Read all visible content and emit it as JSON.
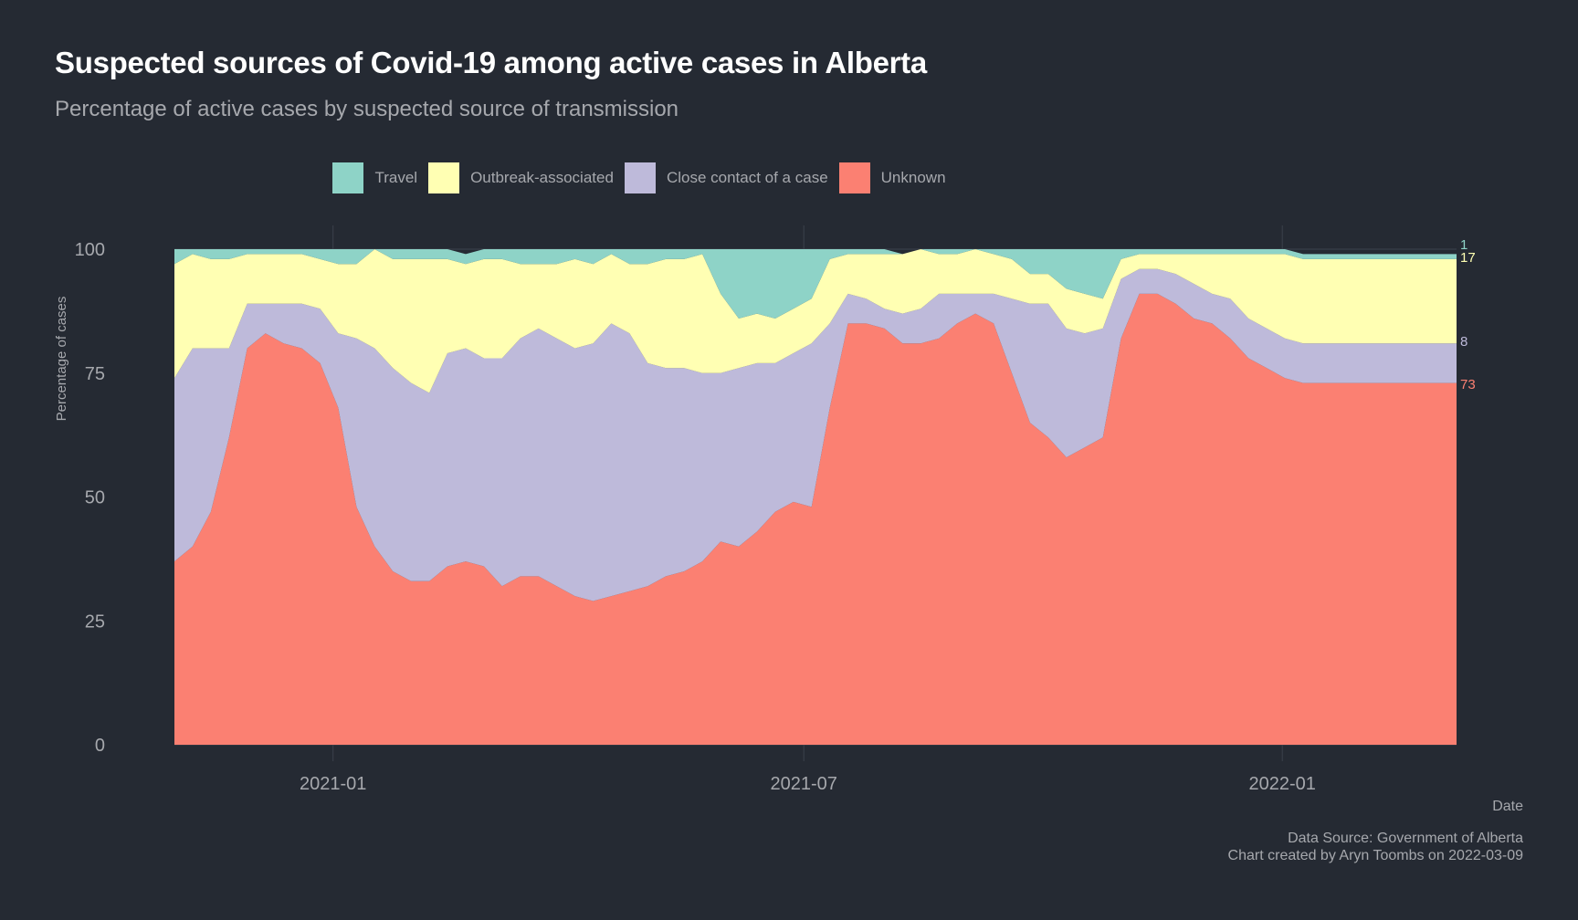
{
  "title": "Suspected sources of Covid-19 among active cases in Alberta",
  "subtitle": "Percentage of active cases by suspected source of transmission",
  "caption": {
    "source": "Data Source: Government of Alberta",
    "credit": "Chart created by Aryn Toombs on 2022-03-09"
  },
  "colors": {
    "background": "#252a33",
    "travel": "#8ed3c7",
    "outbreak": "#ffffb3",
    "close_contact": "#bebada",
    "unknown": "#fb8072",
    "text": "#a6a8ad",
    "grid": "#3b414c"
  },
  "legend": [
    {
      "name": "Travel",
      "color": "#8ed3c7"
    },
    {
      "name": "Outbreak-associated",
      "color": "#ffffb3"
    },
    {
      "name": "Close contact of a case",
      "color": "#bebada"
    },
    {
      "name": "Unknown",
      "color": "#fb8072"
    }
  ],
  "chart_data": {
    "type": "area",
    "stacked": true,
    "xlabel": "Date",
    "ylabel": "Percentage of cases",
    "ylim": [
      0,
      100
    ],
    "xlim": [
      "2020-11-01",
      "2022-03-09"
    ],
    "yticks": [
      0,
      25,
      50,
      75,
      100
    ],
    "xticks": [
      "2021-01",
      "2021-07",
      "2022-01"
    ],
    "legend_position": "top",
    "grid": true,
    "x": [
      "2020-11-01",
      "2020-11-08",
      "2020-11-15",
      "2020-11-22",
      "2020-11-29",
      "2020-12-06",
      "2020-12-13",
      "2020-12-20",
      "2020-12-27",
      "2021-01-03",
      "2021-01-10",
      "2021-01-17",
      "2021-01-24",
      "2021-01-31",
      "2021-02-07",
      "2021-02-14",
      "2021-02-21",
      "2021-02-28",
      "2021-03-07",
      "2021-03-14",
      "2021-03-21",
      "2021-03-28",
      "2021-04-04",
      "2021-04-11",
      "2021-04-18",
      "2021-04-25",
      "2021-05-02",
      "2021-05-09",
      "2021-05-16",
      "2021-05-23",
      "2021-05-30",
      "2021-06-06",
      "2021-06-13",
      "2021-06-20",
      "2021-06-27",
      "2021-07-04",
      "2021-07-11",
      "2021-07-18",
      "2021-07-25",
      "2021-08-01",
      "2021-08-08",
      "2021-08-15",
      "2021-08-22",
      "2021-08-29",
      "2021-09-05",
      "2021-09-12",
      "2021-09-19",
      "2021-09-26",
      "2021-10-03",
      "2021-10-10",
      "2021-10-17",
      "2021-10-24",
      "2021-10-31",
      "2021-11-07",
      "2021-11-14",
      "2021-11-21",
      "2021-11-28",
      "2021-12-05",
      "2021-12-12",
      "2021-12-19",
      "2021-12-26",
      "2022-01-02",
      "2022-01-09",
      "2022-01-16",
      "2022-01-23",
      "2022-01-30",
      "2022-02-06",
      "2022-02-13",
      "2022-02-20",
      "2022-02-27",
      "2022-03-06",
      "2022-03-09"
    ],
    "series": [
      {
        "name": "Unknown",
        "values": [
          37,
          40,
          47,
          62,
          80,
          83,
          81,
          80,
          77,
          68,
          48,
          40,
          35,
          33,
          33,
          36,
          37,
          36,
          32,
          34,
          34,
          32,
          30,
          29,
          30,
          31,
          32,
          34,
          35,
          37,
          41,
          40,
          43,
          47,
          49,
          48,
          68,
          85,
          85,
          84,
          81,
          81,
          82,
          85,
          87,
          85,
          75,
          65,
          62,
          58,
          60,
          62,
          82,
          91,
          91,
          89,
          86,
          85,
          82,
          78,
          76,
          74,
          73,
          73,
          73,
          73,
          73,
          73,
          73,
          73,
          73,
          73
        ]
      },
      {
        "name": "Close contact of a case",
        "values": [
          37,
          40,
          33,
          18,
          9,
          6,
          8,
          9,
          11,
          15,
          34,
          40,
          41,
          40,
          38,
          43,
          43,
          42,
          46,
          48,
          50,
          50,
          50,
          52,
          55,
          52,
          45,
          42,
          41,
          38,
          34,
          36,
          34,
          30,
          30,
          33,
          17,
          6,
          5,
          4,
          6,
          7,
          9,
          6,
          4,
          6,
          15,
          24,
          27,
          26,
          23,
          22,
          12,
          5,
          5,
          6,
          7,
          6,
          8,
          8,
          8,
          8,
          8,
          8,
          8,
          8,
          8,
          8,
          8,
          8,
          8,
          8
        ]
      },
      {
        "name": "Outbreak-associated",
        "values": [
          23,
          19,
          18,
          18,
          10,
          10,
          10,
          10,
          10,
          14,
          15,
          20,
          22,
          25,
          27,
          19,
          17,
          20,
          20,
          15,
          13,
          15,
          18,
          16,
          14,
          14,
          20,
          22,
          22,
          24,
          16,
          10,
          10,
          9,
          9,
          9,
          13,
          8,
          9,
          11,
          12,
          12,
          8,
          8,
          9,
          8,
          8,
          6,
          6,
          8,
          8,
          6,
          4,
          3,
          3,
          4,
          6,
          8,
          9,
          13,
          15,
          17,
          17,
          17,
          17,
          17,
          17,
          17,
          17,
          17,
          17,
          17
        ]
      },
      {
        "name": "Travel",
        "values": [
          3,
          1,
          2,
          2,
          1,
          1,
          1,
          1,
          2,
          3,
          3,
          0,
          2,
          2,
          2,
          2,
          2,
          2,
          2,
          3,
          3,
          3,
          2,
          3,
          1,
          3,
          3,
          2,
          2,
          1,
          9,
          14,
          13,
          14,
          12,
          10,
          2,
          1,
          1,
          1,
          0,
          0,
          1,
          1,
          0,
          1,
          2,
          5,
          5,
          8,
          9,
          10,
          2,
          1,
          1,
          1,
          1,
          1,
          1,
          1,
          1,
          1,
          1,
          1,
          1,
          1,
          1,
          1,
          1,
          1,
          1,
          1
        ]
      }
    ],
    "end_labels": [
      {
        "series": "Travel",
        "text": "1"
      },
      {
        "series": "Outbreak-associated",
        "text": "17"
      },
      {
        "series": "Close contact of a case",
        "text": "8"
      },
      {
        "series": "Unknown",
        "text": "73"
      }
    ]
  }
}
